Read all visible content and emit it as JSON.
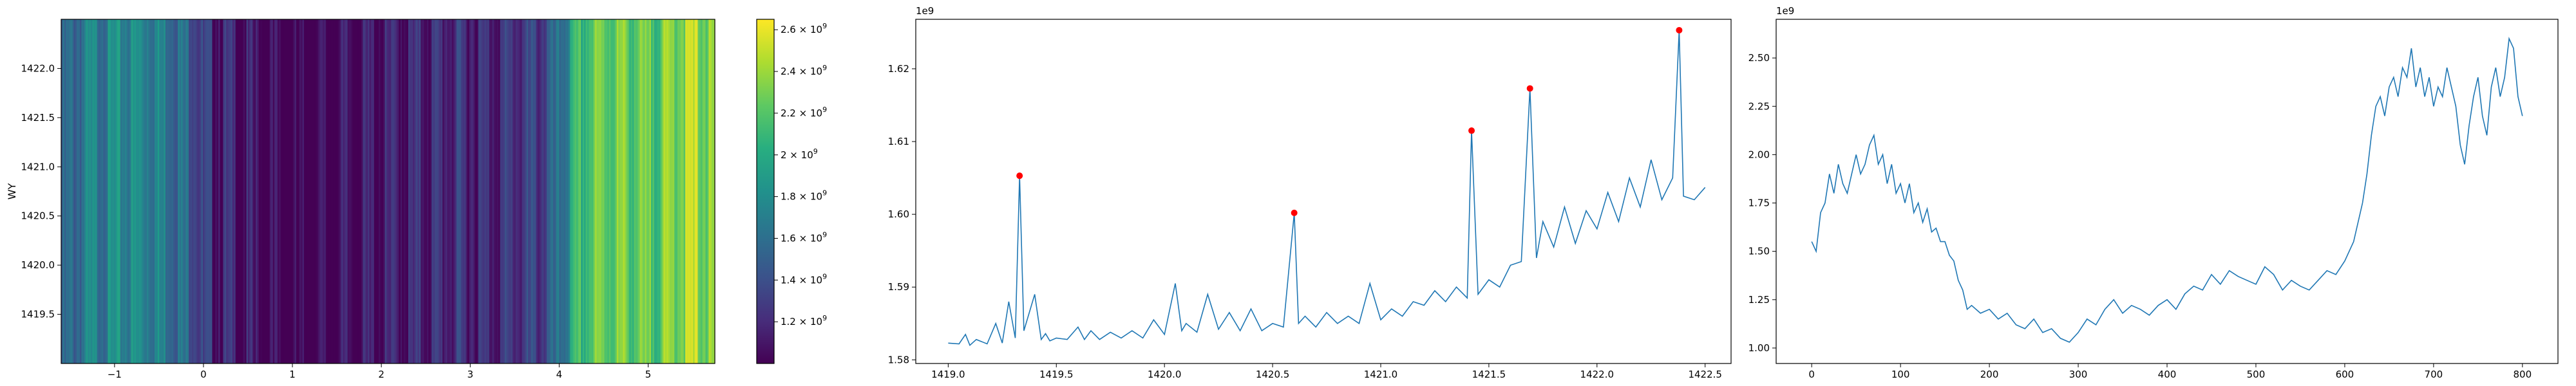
{
  "chart_data": [
    {
      "type": "heatmap",
      "colormap": "viridis",
      "ylabel": "WY",
      "xlabel": "",
      "xlim": [
        -1.6,
        5.75
      ],
      "ylim": [
        1419.0,
        1422.5
      ],
      "xticks": [
        -1,
        0,
        1,
        2,
        3,
        4,
        5
      ],
      "yticks": [
        1419.5,
        1420.0,
        1420.5,
        1421.0,
        1421.5,
        1422.0
      ],
      "xtick_labels": [
        "−1",
        "0",
        "1",
        "2",
        "3",
        "4",
        "5"
      ],
      "ytick_labels": [
        "1419.5",
        "1420.0",
        "1420.5",
        "1421.0",
        "1421.5",
        "1422.0"
      ],
      "colorbar": {
        "min": 1000000000.0,
        "max": 2650000000.0,
        "ticks": [
          1200000000.0,
          1400000000.0,
          1600000000.0,
          1800000000.0,
          2000000000.0,
          2200000000.0,
          2400000000.0,
          2600000000.0
        ],
        "tick_labels": [
          {
            "mantissa": "1.2",
            "base": "10",
            "exp": "9"
          },
          {
            "mantissa": "1.4",
            "base": "10",
            "exp": "9"
          },
          {
            "mantissa": "1.6",
            "base": "10",
            "exp": "9"
          },
          {
            "mantissa": "1.8",
            "base": "10",
            "exp": "9"
          },
          {
            "mantissa": "2",
            "base": "10",
            "exp": "9"
          },
          {
            "mantissa": "2.2",
            "base": "10",
            "exp": "9"
          },
          {
            "mantissa": "2.4",
            "base": "10",
            "exp": "9"
          },
          {
            "mantissa": "2.6",
            "base": "10",
            "exp": "9"
          }
        ]
      },
      "column_profile": [
        {
          "x": -1.6,
          "v": 1550000000.0
        },
        {
          "x": -1.3,
          "v": 1800000000.0
        },
        {
          "x": -1.0,
          "v": 1850000000.0
        },
        {
          "x": -0.7,
          "v": 1900000000.0
        },
        {
          "x": -0.4,
          "v": 1800000000.0
        },
        {
          "x": -0.1,
          "v": 1600000000.0
        },
        {
          "x": 0.0,
          "v": 1350000000.0
        },
        {
          "x": 0.3,
          "v": 1250000000.0
        },
        {
          "x": 0.6,
          "v": 1150000000.0
        },
        {
          "x": 0.9,
          "v": 1080000000.0
        },
        {
          "x": 1.1,
          "v": 1050000000.0
        },
        {
          "x": 1.4,
          "v": 1120000000.0
        },
        {
          "x": 1.7,
          "v": 1180000000.0
        },
        {
          "x": 2.0,
          "v": 1200000000.0
        },
        {
          "x": 2.3,
          "v": 1250000000.0
        },
        {
          "x": 2.6,
          "v": 1300000000.0
        },
        {
          "x": 2.9,
          "v": 1320000000.0
        },
        {
          "x": 3.2,
          "v": 1300000000.0
        },
        {
          "x": 3.5,
          "v": 1350000000.0
        },
        {
          "x": 3.8,
          "v": 1420000000.0
        },
        {
          "x": 4.0,
          "v": 1650000000.0
        },
        {
          "x": 4.2,
          "v": 2150000000.0
        },
        {
          "x": 4.4,
          "v": 2350000000.0
        },
        {
          "x": 4.7,
          "v": 2400000000.0
        },
        {
          "x": 5.0,
          "v": 2300000000.0
        },
        {
          "x": 5.3,
          "v": 2450000000.0
        },
        {
          "x": 5.5,
          "v": 2550000000.0
        },
        {
          "x": 5.75,
          "v": 2350000000.0
        }
      ]
    },
    {
      "type": "line",
      "color": "#1f77b4",
      "marker_color": "#ff0000",
      "xlim": [
        1418.85,
        1422.62
      ],
      "ylim": [
        1579500000.0,
        1626800000.0
      ],
      "xticks": [
        1419.0,
        1419.5,
        1420.0,
        1420.5,
        1421.0,
        1421.5,
        1422.0,
        1422.5
      ],
      "yticks": [
        1580000000.0,
        1590000000.0,
        1600000000.0,
        1610000000.0,
        1620000000.0
      ],
      "xtick_labels": [
        "1419.0",
        "1419.5",
        "1420.0",
        "1420.5",
        "1421.0",
        "1421.5",
        "1422.0",
        "1422.5"
      ],
      "ytick_labels": [
        "1.58",
        "1.59",
        "1.60",
        "1.61",
        "1.62"
      ],
      "y_offset_label": "1e9",
      "x": [
        1419.0,
        1419.05,
        1419.08,
        1419.1,
        1419.13,
        1419.18,
        1419.22,
        1419.25,
        1419.28,
        1419.31,
        1419.33,
        1419.35,
        1419.4,
        1419.43,
        1419.45,
        1419.47,
        1419.5,
        1419.55,
        1419.6,
        1419.63,
        1419.66,
        1419.7,
        1419.75,
        1419.8,
        1419.85,
        1419.9,
        1419.95,
        1420.0,
        1420.05,
        1420.08,
        1420.1,
        1420.15,
        1420.2,
        1420.25,
        1420.3,
        1420.35,
        1420.4,
        1420.45,
        1420.5,
        1420.55,
        1420.6,
        1420.62,
        1420.65,
        1420.7,
        1420.75,
        1420.8,
        1420.85,
        1420.9,
        1420.95,
        1421.0,
        1421.05,
        1421.1,
        1421.15,
        1421.2,
        1421.25,
        1421.3,
        1421.35,
        1421.4,
        1421.42,
        1421.45,
        1421.5,
        1421.55,
        1421.6,
        1421.65,
        1421.69,
        1421.72,
        1421.75,
        1421.8,
        1421.85,
        1421.9,
        1421.95,
        1422.0,
        1422.05,
        1422.1,
        1422.15,
        1422.2,
        1422.25,
        1422.3,
        1422.35,
        1422.38,
        1422.4,
        1422.45,
        1422.5
      ],
      "y": [
        1582300000.0,
        1582200000.0,
        1583500000.0,
        1582000000.0,
        1582800000.0,
        1582200000.0,
        1585000000.0,
        1582300000.0,
        1588000000.0,
        1583000000.0,
        1605300000.0,
        1584000000.0,
        1589000000.0,
        1582800000.0,
        1583600000.0,
        1582600000.0,
        1583000000.0,
        1582800000.0,
        1584500000.0,
        1582800000.0,
        1584000000.0,
        1582800000.0,
        1583800000.0,
        1583000000.0,
        1584000000.0,
        1583000000.0,
        1585500000.0,
        1583500000.0,
        1590500000.0,
        1584000000.0,
        1585000000.0,
        1583800000.0,
        1589000000.0,
        1584200000.0,
        1586500000.0,
        1584000000.0,
        1587000000.0,
        1584000000.0,
        1585000000.0,
        1584500000.0,
        1600200000.0,
        1585000000.0,
        1586000000.0,
        1584500000.0,
        1586500000.0,
        1585000000.0,
        1586000000.0,
        1585000000.0,
        1590500000.0,
        1585500000.0,
        1587000000.0,
        1586000000.0,
        1588000000.0,
        1587500000.0,
        1589500000.0,
        1588000000.0,
        1590000000.0,
        1588500000.0,
        1611500000.0,
        1589000000.0,
        1591000000.0,
        1590000000.0,
        1593000000.0,
        1593500000.0,
        1617300000.0,
        1594000000.0,
        1599000000.0,
        1595500000.0,
        1601000000.0,
        1596000000.0,
        1600500000.0,
        1598000000.0,
        1603000000.0,
        1599000000.0,
        1605000000.0,
        1601000000.0,
        1607500000.0,
        1602000000.0,
        1605000000.0,
        1625300000.0,
        1602500000.0,
        1602000000.0,
        1603700000.0
      ],
      "peaks": [
        {
          "x": 1419.33,
          "y": 1605300000.0
        },
        {
          "x": 1420.6,
          "y": 1600200000.0
        },
        {
          "x": 1421.42,
          "y": 1611500000.0
        },
        {
          "x": 1421.69,
          "y": 1617300000.0
        },
        {
          "x": 1422.38,
          "y": 1625300000.0
        }
      ]
    },
    {
      "type": "line",
      "color": "#1f77b4",
      "xlim": [
        -40,
        840
      ],
      "ylim": [
        920000000.0,
        2700000000.0
      ],
      "xticks": [
        0,
        100,
        200,
        300,
        400,
        500,
        600,
        700,
        800
      ],
      "yticks": [
        1000000000.0,
        1250000000.0,
        1500000000.0,
        1750000000.0,
        2000000000.0,
        2250000000.0,
        2500000000.0
      ],
      "xtick_labels": [
        "0",
        "100",
        "200",
        "300",
        "400",
        "500",
        "600",
        "700",
        "800"
      ],
      "ytick_labels": [
        "1.00",
        "1.25",
        "1.50",
        "1.75",
        "2.00",
        "2.25",
        "2.50"
      ],
      "y_offset_label": "1e9",
      "x": [
        0,
        5,
        10,
        15,
        20,
        25,
        30,
        35,
        40,
        45,
        50,
        55,
        60,
        65,
        70,
        75,
        80,
        85,
        90,
        95,
        100,
        105,
        110,
        115,
        120,
        125,
        130,
        135,
        140,
        145,
        150,
        155,
        160,
        165,
        170,
        175,
        180,
        190,
        200,
        210,
        220,
        230,
        240,
        250,
        260,
        270,
        280,
        290,
        300,
        310,
        320,
        330,
        340,
        350,
        360,
        370,
        380,
        390,
        400,
        410,
        420,
        430,
        440,
        450,
        460,
        470,
        480,
        490,
        500,
        510,
        520,
        530,
        540,
        550,
        560,
        570,
        580,
        590,
        600,
        610,
        620,
        625,
        630,
        635,
        640,
        645,
        650,
        655,
        660,
        665,
        670,
        675,
        680,
        685,
        690,
        695,
        700,
        705,
        710,
        715,
        720,
        725,
        730,
        735,
        740,
        745,
        750,
        755,
        760,
        765,
        770,
        775,
        780,
        785,
        790,
        795,
        800
      ],
      "y": [
        1550000000.0,
        1500000000.0,
        1700000000.0,
        1750000000.0,
        1900000000.0,
        1800000000.0,
        1950000000.0,
        1850000000.0,
        1800000000.0,
        1900000000.0,
        2000000000.0,
        1900000000.0,
        1950000000.0,
        2050000000.0,
        2100000000.0,
        1950000000.0,
        2000000000.0,
        1850000000.0,
        1950000000.0,
        1800000000.0,
        1850000000.0,
        1750000000.0,
        1850000000.0,
        1700000000.0,
        1750000000.0,
        1650000000.0,
        1720000000.0,
        1600000000.0,
        1620000000.0,
        1550000000.0,
        1550000000.0,
        1480000000.0,
        1450000000.0,
        1350000000.0,
        1300000000.0,
        1200000000.0,
        1220000000.0,
        1180000000.0,
        1200000000.0,
        1150000000.0,
        1180000000.0,
        1120000000.0,
        1100000000.0,
        1150000000.0,
        1080000000.0,
        1100000000.0,
        1050000000.0,
        1030000000.0,
        1080000000.0,
        1150000000.0,
        1120000000.0,
        1200000000.0,
        1250000000.0,
        1180000000.0,
        1220000000.0,
        1200000000.0,
        1170000000.0,
        1220000000.0,
        1250000000.0,
        1200000000.0,
        1280000000.0,
        1320000000.0,
        1300000000.0,
        1380000000.0,
        1330000000.0,
        1400000000.0,
        1370000000.0,
        1350000000.0,
        1330000000.0,
        1420000000.0,
        1380000000.0,
        1300000000.0,
        1350000000.0,
        1320000000.0,
        1300000000.0,
        1350000000.0,
        1400000000.0,
        1380000000.0,
        1450000000.0,
        1550000000.0,
        1750000000.0,
        1900000000.0,
        2100000000.0,
        2250000000.0,
        2300000000.0,
        2200000000.0,
        2350000000.0,
        2400000000.0,
        2300000000.0,
        2450000000.0,
        2400000000.0,
        2550000000.0,
        2350000000.0,
        2450000000.0,
        2300000000.0,
        2400000000.0,
        2250000000.0,
        2350000000.0,
        2300000000.0,
        2450000000.0,
        2350000000.0,
        2250000000.0,
        2050000000.0,
        1950000000.0,
        2150000000.0,
        2300000000.0,
        2400000000.0,
        2200000000.0,
        2100000000.0,
        2350000000.0,
        2450000000.0,
        2300000000.0,
        2400000000.0,
        2600000000.0,
        2550000000.0,
        2300000000.0,
        2200000000.0
      ]
    }
  ]
}
